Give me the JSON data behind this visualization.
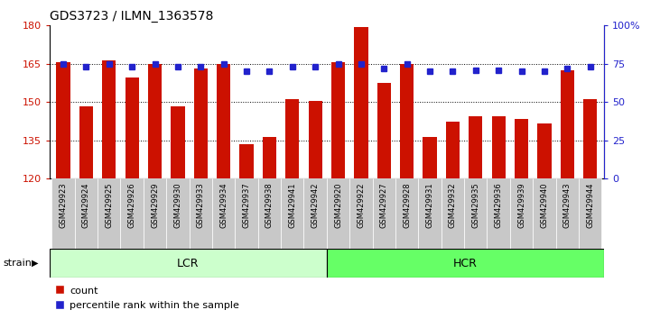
{
  "title": "GDS3723 / ILMN_1363578",
  "samples": [
    "GSM429923",
    "GSM429924",
    "GSM429925",
    "GSM429926",
    "GSM429929",
    "GSM429930",
    "GSM429933",
    "GSM429934",
    "GSM429937",
    "GSM429938",
    "GSM429941",
    "GSM429942",
    "GSM429920",
    "GSM429922",
    "GSM429927",
    "GSM429928",
    "GSM429931",
    "GSM429932",
    "GSM429935",
    "GSM429936",
    "GSM429939",
    "GSM429940",
    "GSM429943",
    "GSM429944"
  ],
  "counts": [
    165.8,
    148.5,
    166.5,
    159.5,
    164.8,
    148.5,
    163.2,
    164.8,
    133.5,
    136.2,
    151.2,
    150.5,
    165.8,
    179.5,
    157.5,
    164.8,
    136.2,
    142.5,
    144.5,
    144.5,
    143.5,
    141.5,
    162.5,
    151.0
  ],
  "percentile_ranks": [
    75,
    73,
    75,
    73,
    75,
    73,
    73,
    75,
    70,
    70,
    73,
    73,
    75,
    75,
    72,
    75,
    70,
    70,
    71,
    71,
    70,
    70,
    72,
    73
  ],
  "group_labels": [
    "LCR",
    "HCR"
  ],
  "group_sizes": [
    12,
    12
  ],
  "group_colors": [
    "#ccffcc",
    "#66ff66"
  ],
  "ylim_left": [
    120,
    180
  ],
  "ylim_right": [
    0,
    100
  ],
  "yticks_left": [
    120,
    135,
    150,
    165,
    180
  ],
  "yticks_right": [
    0,
    25,
    50,
    75,
    100
  ],
  "bar_color": "#cc1100",
  "dot_color": "#2222cc",
  "bg_color": "#ffffff",
  "tick_area_color": "#c8c8c8",
  "strain_label": "strain"
}
